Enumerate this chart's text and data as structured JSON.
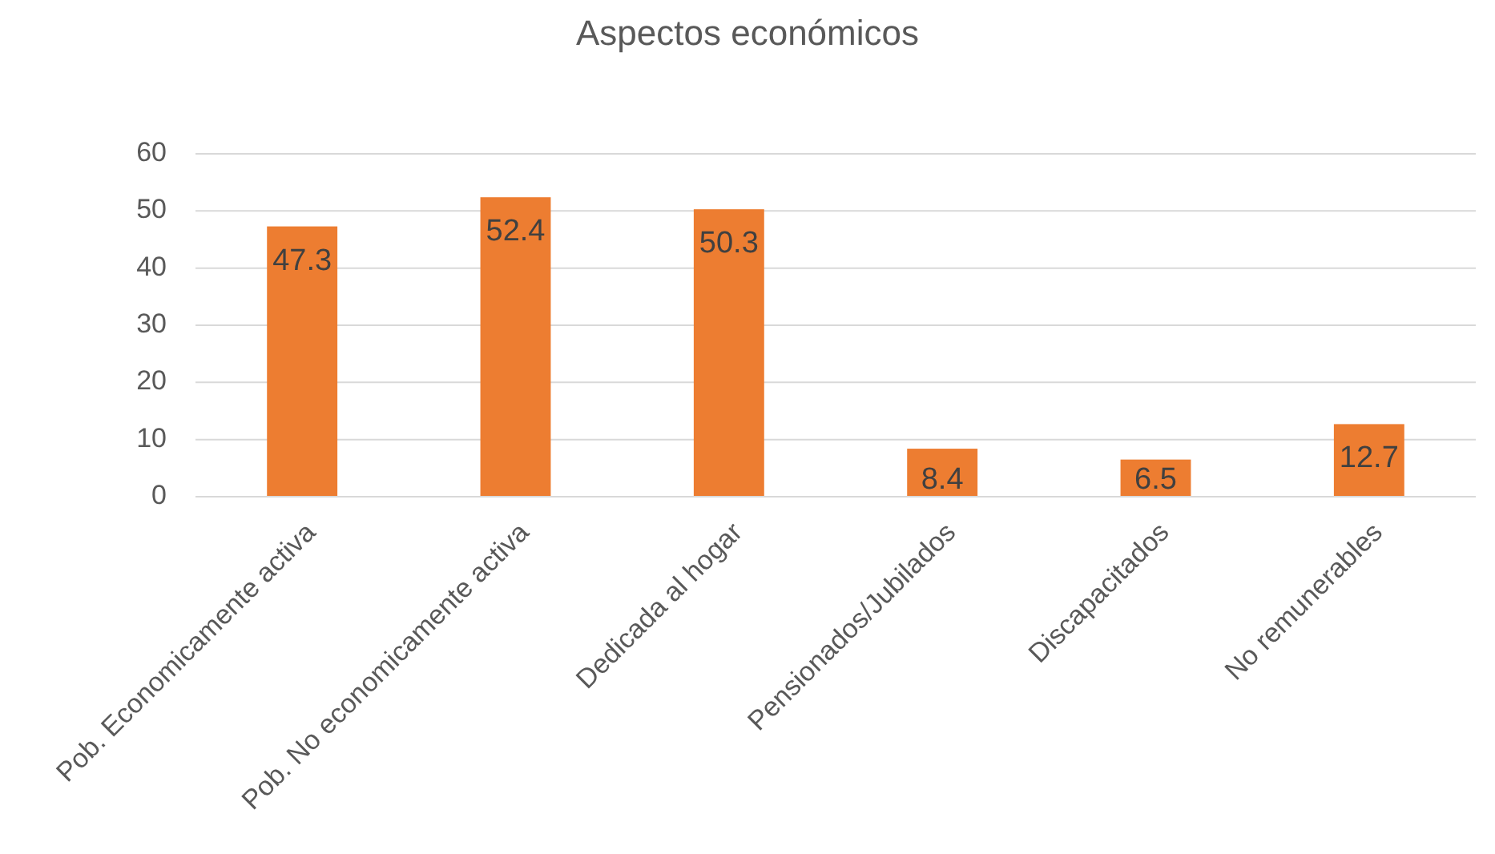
{
  "chart_data": {
    "type": "bar",
    "title": "Aspectos económicos",
    "categories": [
      "Pob. Economicamente activa",
      "Pob. No economicamente activa",
      "Dedicada al hogar",
      "Pensionados/Jubilados",
      "Discapacitados",
      "No remunerables"
    ],
    "values": [
      47.3,
      52.4,
      50.3,
      8.4,
      6.5,
      12.7
    ],
    "color": "#ed7d31",
    "ylim": [
      0,
      60
    ],
    "yticks": [
      0,
      10,
      20,
      30,
      40,
      50,
      60
    ],
    "grid": "y",
    "data_labels": true
  }
}
